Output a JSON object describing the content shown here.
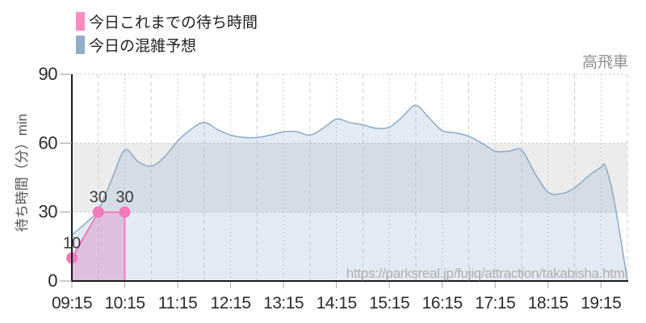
{
  "title": "高飛車",
  "legend": {
    "items": [
      {
        "label": "今日これまでの待ち時間",
        "color": "#fb8cc3"
      },
      {
        "label": "今日の混雑予想",
        "color": "#92aec8"
      }
    ]
  },
  "watermark": "https://parksreal.jp/fujiq/attraction/takabisha.html",
  "chart_data": {
    "type": "area",
    "title": "高飛車",
    "xlabel": "",
    "ylabel": "待ち時間（分）min",
    "ylim": [
      0,
      90
    ],
    "yticks": [
      0,
      30,
      60,
      90
    ],
    "xtick_labels": [
      "09:15",
      "10:15",
      "11:15",
      "12:15",
      "13:15",
      "14:15",
      "15:15",
      "16:15",
      "17:15",
      "18:15",
      "19:15"
    ],
    "x_domain": [
      "09:15",
      "19:45"
    ],
    "grid": "on",
    "legend_position": "top-left",
    "band": {
      "from": 30,
      "to": 60,
      "color": "#ececec"
    },
    "series": [
      {
        "name": "今日の混雑予想",
        "line_color": "#8aabc9",
        "fill_color": "rgba(144,172,208,0.25)",
        "smooth": true,
        "points": [
          [
            "09:15",
            20
          ],
          [
            "09:30",
            25
          ],
          [
            "09:45",
            31
          ],
          [
            "10:00",
            44
          ],
          [
            "10:15",
            57
          ],
          [
            "10:30",
            52
          ],
          [
            "10:45",
            50
          ],
          [
            "11:00",
            54
          ],
          [
            "11:15",
            61
          ],
          [
            "11:30",
            66
          ],
          [
            "11:45",
            69
          ],
          [
            "12:00",
            66
          ],
          [
            "12:15",
            63.5
          ],
          [
            "12:30",
            62.5
          ],
          [
            "12:45",
            62.5
          ],
          [
            "13:00",
            63.5
          ],
          [
            "13:15",
            65
          ],
          [
            "13:30",
            65
          ],
          [
            "13:45",
            63.5
          ],
          [
            "14:00",
            66.5
          ],
          [
            "14:15",
            70.5
          ],
          [
            "14:30",
            69
          ],
          [
            "14:45",
            68
          ],
          [
            "15:00",
            66.5
          ],
          [
            "15:15",
            67
          ],
          [
            "15:30",
            71.5
          ],
          [
            "15:45",
            76.5
          ],
          [
            "16:00",
            71
          ],
          [
            "16:15",
            65.5
          ],
          [
            "16:30",
            64.5
          ],
          [
            "16:45",
            63
          ],
          [
            "17:00",
            60
          ],
          [
            "17:15",
            56.5
          ],
          [
            "17:30",
            56.5
          ],
          [
            "17:45",
            57
          ],
          [
            "18:00",
            47
          ],
          [
            "18:15",
            38.7
          ],
          [
            "18:30",
            38
          ],
          [
            "18:45",
            40.5
          ],
          [
            "19:00",
            45.5
          ],
          [
            "19:15",
            49.5
          ],
          [
            "19:20",
            50
          ],
          [
            "19:30",
            35
          ],
          [
            "19:45",
            0
          ]
        ]
      },
      {
        "name": "今日これまでの待ち時間",
        "line_color": "#ef7cba",
        "fill_color": "rgba(217,148,202,0.5)",
        "dot_color": "#f478bc",
        "smooth": false,
        "close_right": true,
        "points": [
          [
            "09:15",
            10
          ],
          [
            "09:45",
            30
          ],
          [
            "10:15",
            30
          ]
        ],
        "point_labels": [
          "10",
          "30",
          "30"
        ]
      }
    ]
  }
}
